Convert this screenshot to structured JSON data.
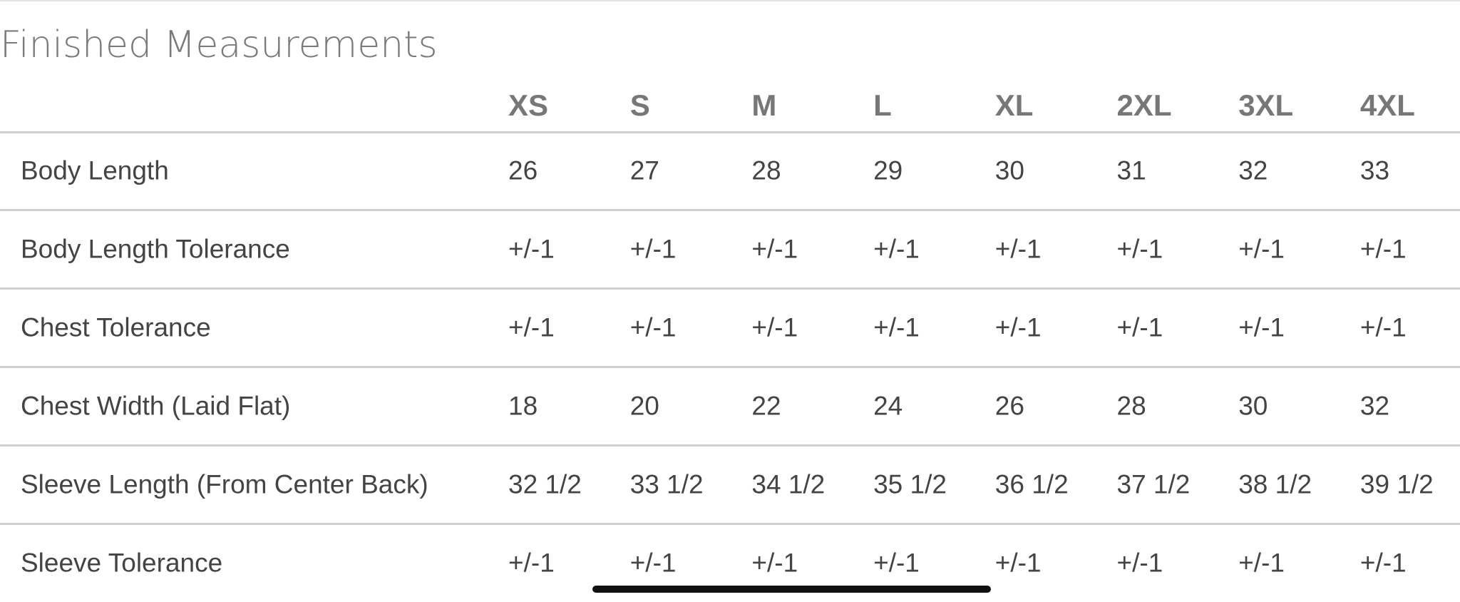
{
  "header": {
    "title": "Finished Measurements"
  },
  "table": {
    "columns": [
      "XS",
      "S",
      "M",
      "L",
      "XL",
      "2XL",
      "3XL",
      "4XL"
    ],
    "rows": [
      {
        "label": "Body Length",
        "cells": [
          "26",
          "27",
          "28",
          "29",
          "30",
          "31",
          "32",
          "33"
        ]
      },
      {
        "label": "Body Length Tolerance",
        "cells": [
          "+/-1",
          "+/-1",
          "+/-1",
          "+/-1",
          "+/-1",
          "+/-1",
          "+/-1",
          "+/-1"
        ]
      },
      {
        "label": "Chest Tolerance",
        "cells": [
          "+/-1",
          "+/-1",
          "+/-1",
          "+/-1",
          "+/-1",
          "+/-1",
          "+/-1",
          "+/-1"
        ]
      },
      {
        "label": "Chest Width (Laid Flat)",
        "cells": [
          "18",
          "20",
          "22",
          "24",
          "26",
          "28",
          "30",
          "32"
        ]
      },
      {
        "label": "Sleeve Length (From Center Back)",
        "cells": [
          "32 1/2",
          "33 1/2",
          "34 1/2",
          "35 1/2",
          "36 1/2",
          "37 1/2",
          "38 1/2",
          "39 1/2"
        ]
      },
      {
        "label": "Sleeve Tolerance",
        "cells": [
          "+/-1",
          "+/-1",
          "+/-1",
          "+/-1",
          "+/-1",
          "+/-1",
          "+/-1",
          "+/-1"
        ]
      }
    ]
  }
}
